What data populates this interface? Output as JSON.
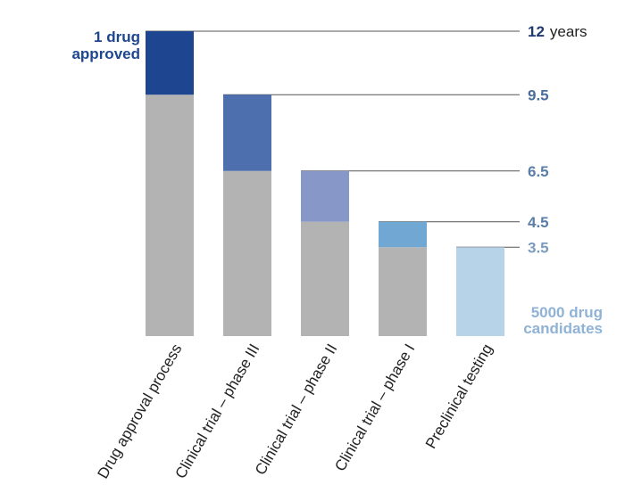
{
  "chart_data": {
    "type": "bar",
    "stacked": true,
    "categories": [
      "Drug approval process",
      "Clinical trial – phase III",
      "Clinical trial – phase II",
      "Clinical trial – phase I",
      "Preclinical testing"
    ],
    "base_values": [
      9.5,
      6.5,
      4.5,
      3.5,
      0
    ],
    "stage_values": [
      2.5,
      3,
      2,
      1,
      3.5
    ],
    "totals": [
      12,
      9.5,
      6.5,
      4.5,
      3.5
    ],
    "total_labels": [
      "12",
      "9.5",
      "6.5",
      "4.5",
      "3.5"
    ],
    "top_unit": "years",
    "ylim": [
      0,
      12
    ],
    "base_color": "#b3b3b3",
    "stage_colors": [
      "#1e4690",
      "#4d6fae",
      "#8797c8",
      "#71a7d3",
      "#b7d3e8"
    ],
    "label_colors": [
      "#1e3a6e",
      "#4a6d99",
      "#5a7ea8",
      "#5a7ea8",
      "#7b9bbf"
    ],
    "annotations": {
      "top_line1": "1 drug",
      "top_line2": "approved",
      "bottom_line1": "5000 drug",
      "bottom_line2": "candidates",
      "top_color": "#1e4690",
      "bottom_color": "#8fb3d6"
    }
  }
}
